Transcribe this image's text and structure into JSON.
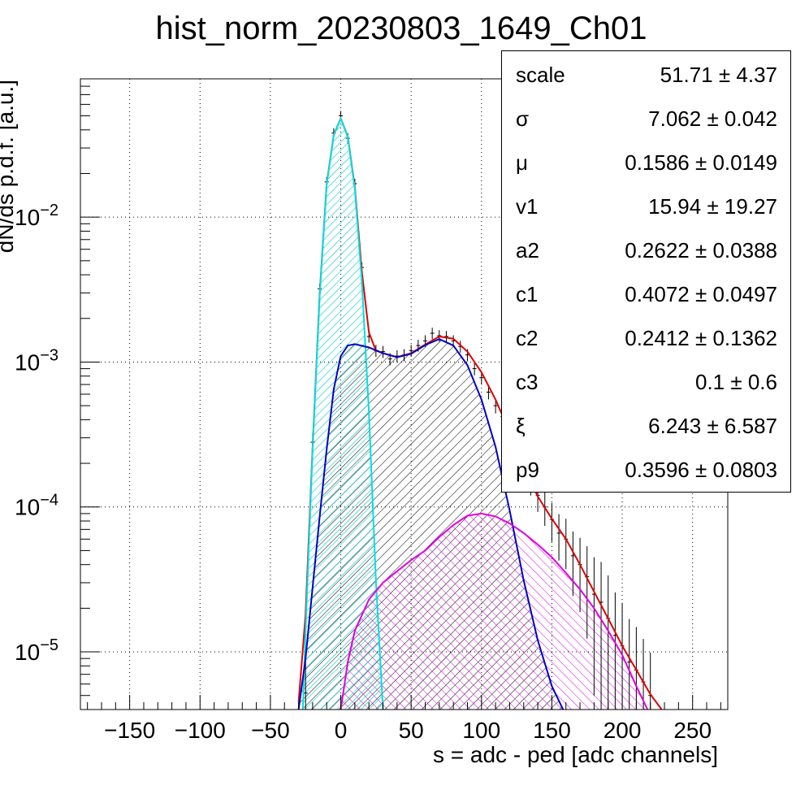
{
  "chart_data": {
    "type": "line",
    "title": "hist_norm_20230803_1649_Ch01",
    "xlabel": "s = adc - ped [adc channels]",
    "ylabel": "dN/ds p.d.f. [a.u.]",
    "xlim": [
      -185,
      275
    ],
    "ylim": [
      4e-06,
      0.09
    ],
    "y_scale": "log",
    "grid": true,
    "x_ticks": [
      "−150",
      "−100",
      "−50",
      "0",
      "50",
      "100",
      "150",
      "200",
      "250"
    ],
    "y_ticks": [
      {
        "value": 0.01,
        "base": "10",
        "exp": "−2"
      },
      {
        "value": 0.001,
        "base": "10",
        "exp": "−3"
      },
      {
        "value": 0.0001,
        "base": "10",
        "exp": "−4"
      },
      {
        "value": 1e-05,
        "base": "10",
        "exp": "−5"
      }
    ],
    "series": [
      {
        "color": "#e00000",
        "x": [
          -30,
          -25,
          -20,
          -15,
          -10,
          -5,
          0,
          5,
          10,
          15,
          20,
          25,
          30,
          40,
          50,
          60,
          70,
          80,
          90,
          100,
          110,
          120,
          130,
          140,
          150,
          160,
          170,
          180,
          190,
          200,
          210,
          220,
          228
        ],
        "y": [
          4.5e-06,
          1.8e-05,
          0.00026,
          0.0029,
          0.017,
          0.037,
          0.048,
          0.036,
          0.016,
          0.0042,
          0.0016,
          0.0012,
          0.00115,
          0.00108,
          0.00115,
          0.00132,
          0.0015,
          0.00145,
          0.00118,
          0.00085,
          0.00055,
          0.00033,
          0.00019,
          0.000118,
          8.3e-05,
          6e-05,
          4e-05,
          2.6e-05,
          1.7e-05,
          1.1e-05,
          7.5e-06,
          5.1e-06,
          4e-06
        ]
      },
      {
        "color": "#00e0e0",
        "x": [
          -27,
          -25,
          -20,
          -15,
          -10,
          -5,
          0,
          5,
          10,
          15,
          20,
          25,
          30
        ],
        "y": [
          4e-06,
          1.4e-05,
          0.00025,
          0.0028,
          0.0168,
          0.0368,
          0.0478,
          0.0358,
          0.0155,
          0.0036,
          0.00045,
          3.1e-05,
          4e-06
        ]
      },
      {
        "color": "#0000c8",
        "x": [
          -30,
          -25,
          -20,
          -15,
          -10,
          -5,
          0,
          5,
          10,
          20,
          30,
          40,
          50,
          60,
          70,
          80,
          90,
          100,
          110,
          120,
          130,
          140,
          150,
          158
        ],
        "y": [
          4e-06,
          9e-06,
          2.8e-05,
          8.5e-05,
          0.00025,
          0.00065,
          0.0011,
          0.0013,
          0.00133,
          0.00126,
          0.00115,
          0.00108,
          0.00114,
          0.00131,
          0.00144,
          0.0013,
          0.00095,
          0.00055,
          0.00026,
          9.5e-05,
          3.1e-05,
          1.2e-05,
          5.8e-06,
          4e-06
        ]
      },
      {
        "color": "#e000e0",
        "x": [
          0,
          5,
          10,
          20,
          30,
          40,
          50,
          60,
          70,
          80,
          90,
          100,
          110,
          120,
          130,
          140,
          150,
          160,
          170,
          180,
          190,
          200,
          210,
          218
        ],
        "y": [
          4e-06,
          8.5e-06,
          1.4e-05,
          2.3e-05,
          3e-05,
          3.6e-05,
          4.3e-05,
          5e-05,
          6.2e-05,
          7.5e-05,
          8.7e-05,
          9e-05,
          8.6e-05,
          7.7e-05,
          6.6e-05,
          5.5e-05,
          4.5e-05,
          3.5e-05,
          2.7e-05,
          2e-05,
          1.4e-05,
          9.5e-06,
          5.8e-06,
          4e-06
        ]
      }
    ],
    "histogram": [
      [
        -25,
        5.2e-06
      ],
      [
        -20,
        0.00028
      ],
      [
        -15,
        0.0032
      ],
      [
        -10,
        0.0175
      ],
      [
        -5,
        0.038
      ],
      [
        0,
        0.05
      ],
      [
        5,
        0.035
      ],
      [
        10,
        0.017
      ],
      [
        15,
        0.0045
      ],
      [
        20,
        0.0015
      ],
      [
        25,
        0.0012
      ],
      [
        30,
        0.00118
      ],
      [
        35,
        0.00105
      ],
      [
        40,
        0.0011
      ],
      [
        45,
        0.00112
      ],
      [
        50,
        0.0012
      ],
      [
        55,
        0.0013
      ],
      [
        60,
        0.0014
      ],
      [
        65,
        0.00158
      ],
      [
        70,
        0.00152
      ],
      [
        75,
        0.0015
      ],
      [
        80,
        0.0014
      ],
      [
        85,
        0.00128
      ],
      [
        90,
        0.00112
      ],
      [
        95,
        0.0009
      ],
      [
        100,
        0.00078
      ],
      [
        105,
        0.00062
      ],
      [
        110,
        0.0005
      ],
      [
        115,
        0.00042
      ],
      [
        120,
        0.00032
      ],
      [
        125,
        0.00025
      ],
      [
        130,
        0.0002
      ],
      [
        135,
        0.00015
      ],
      [
        140,
        0.00012
      ],
      [
        145,
        0.0001
      ],
      [
        150,
        8.2e-05
      ],
      [
        155,
        6.6e-05
      ],
      [
        160,
        6e-05
      ],
      [
        165,
        4.6e-05
      ],
      [
        170,
        4e-05
      ],
      [
        175,
        3.3e-05
      ],
      [
        180,
        2.5e-05
      ],
      [
        185,
        2.2e-05
      ],
      [
        190,
        1.7e-05
      ],
      [
        195,
        1.3e-05
      ],
      [
        200,
        1.1e-05
      ],
      [
        205,
        8.5e-06
      ],
      [
        210,
        7.5e-06
      ],
      [
        215,
        6.2e-06
      ],
      [
        220,
        5e-06
      ]
    ]
  },
  "stats": {
    "rows": [
      {
        "name": "scale",
        "value": "51.71 ± 4.37"
      },
      {
        "name": "σ",
        "value": "7.062 ± 0.042"
      },
      {
        "name": "μ",
        "value": "0.1586 ± 0.0149"
      },
      {
        "name": "v1",
        "value": "15.94 ± 19.27"
      },
      {
        "name": "a2",
        "value": "0.2622 ± 0.0388"
      },
      {
        "name": "c1",
        "value": "0.4072 ± 0.0497"
      },
      {
        "name": "c2",
        "value": "0.2412 ± 0.1362"
      },
      {
        "name": "c3",
        "value": "0.1 ± 0.6"
      },
      {
        "name": "ξ",
        "value": "6.243 ± 6.587"
      },
      {
        "name": "p9",
        "value": "0.3596 ± 0.0803"
      }
    ]
  }
}
